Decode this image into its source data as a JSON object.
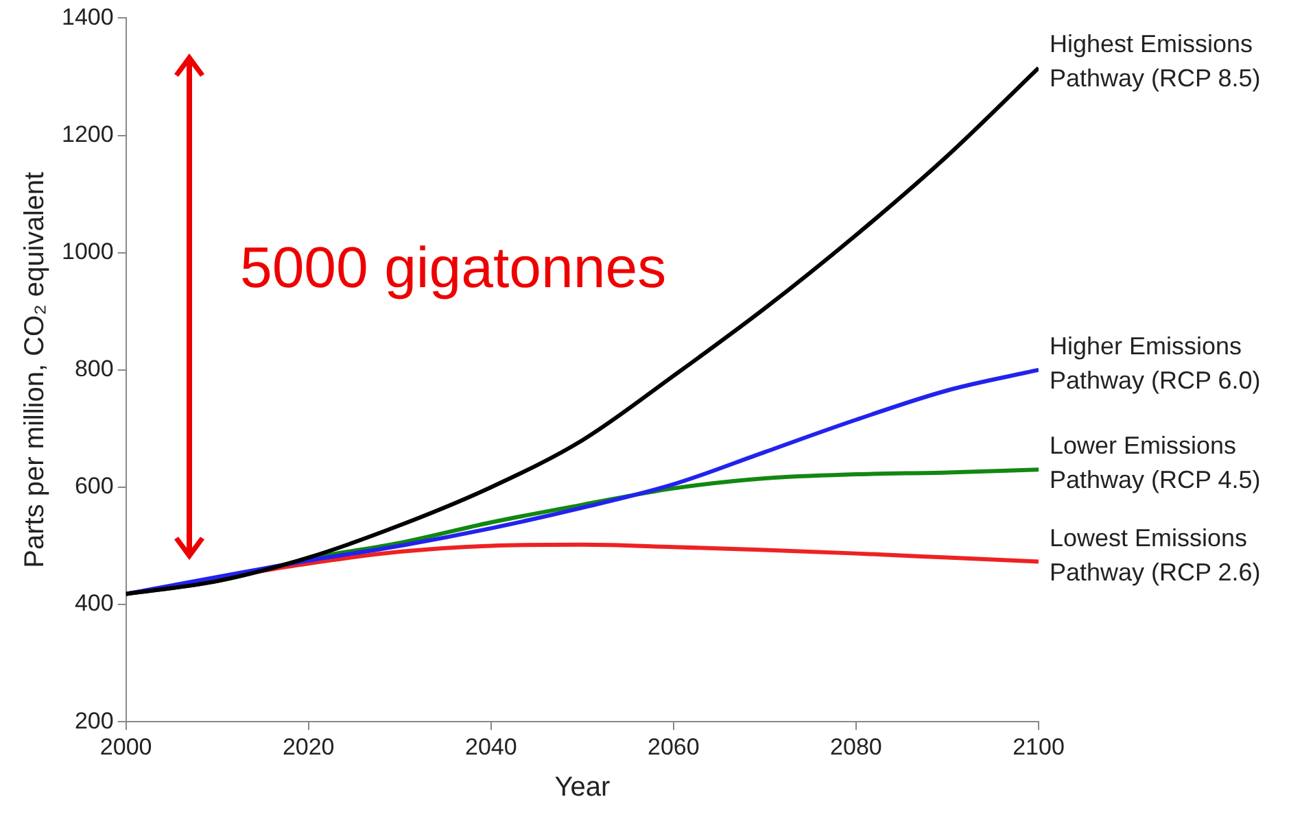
{
  "chart_data": {
    "type": "line",
    "xlabel": "Year",
    "ylabel": "Parts per million, CO₂ equivalent",
    "x": [
      2000,
      2010,
      2020,
      2030,
      2040,
      2050,
      2060,
      2070,
      2080,
      2090,
      2100
    ],
    "series": [
      {
        "name": "Highest Emissions Pathway (RCP 8.5)",
        "color": "#000000",
        "values": [
          418,
          440,
          480,
          535,
          600,
          680,
          790,
          905,
          1030,
          1165,
          1315
        ]
      },
      {
        "name": "Higher Emissions Pathway (RCP 6.0)",
        "color": "#2222ee",
        "values": [
          418,
          null,
          475,
          500,
          530,
          565,
          605,
          660,
          715,
          765,
          800
        ]
      },
      {
        "name": "Lower Emissions Pathway (RCP 4.5)",
        "color": "#118811",
        "values": [
          418,
          440,
          478,
          505,
          540,
          570,
          598,
          615,
          622,
          625,
          630
        ]
      },
      {
        "name": "Lowest Emissions Pathway (RCP 2.6)",
        "color": "#ee2222",
        "values": [
          418,
          null,
          470,
          490,
          500,
          502,
          498,
          493,
          487,
          480,
          473
        ]
      }
    ],
    "xlim": [
      2000,
      2100
    ],
    "xticks": [
      2000,
      2020,
      2040,
      2060,
      2080,
      2100
    ],
    "ylim": [
      200,
      1400
    ],
    "yticks": [
      200,
      400,
      600,
      800,
      1000,
      1200,
      1400
    ],
    "grid": false,
    "legend": false,
    "marker": "none",
    "line_style": "solid",
    "annotations": [
      "5000 gigatonnes"
    ]
  }
}
